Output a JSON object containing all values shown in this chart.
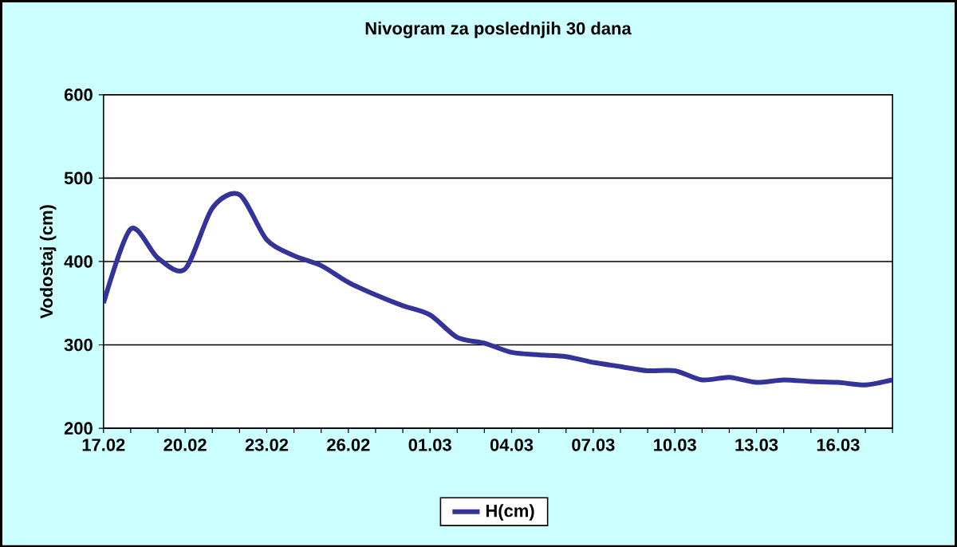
{
  "chart_data": {
    "type": "line",
    "title": "Nivogram za poslednjih 30 dana",
    "ylabel": "Vodostaj (cm)",
    "categories": [
      "17.02",
      null,
      null,
      "20.02",
      null,
      null,
      "23.02",
      null,
      null,
      "26.02",
      null,
      null,
      "01.03",
      null,
      null,
      "04.03",
      null,
      null,
      "07.03",
      null,
      null,
      "10.03",
      null,
      null,
      "13.03",
      null,
      null,
      "16.03",
      null,
      null
    ],
    "series": [
      {
        "name": "H(cm)",
        "color": "#333399",
        "values": [
          350,
          439,
          404,
          391,
          464,
          480,
          426,
          407,
          395,
          375,
          360,
          347,
          336,
          309,
          302,
          291,
          288,
          286,
          279,
          274,
          269,
          269,
          258,
          261,
          255,
          258,
          256,
          255,
          252,
          258
        ]
      }
    ],
    "ylim": [
      200,
      600
    ],
    "yticks": [
      200,
      300,
      400,
      500,
      600
    ],
    "grid": "y",
    "legend": "bottom",
    "marker": "none",
    "line_style": "solid"
  }
}
